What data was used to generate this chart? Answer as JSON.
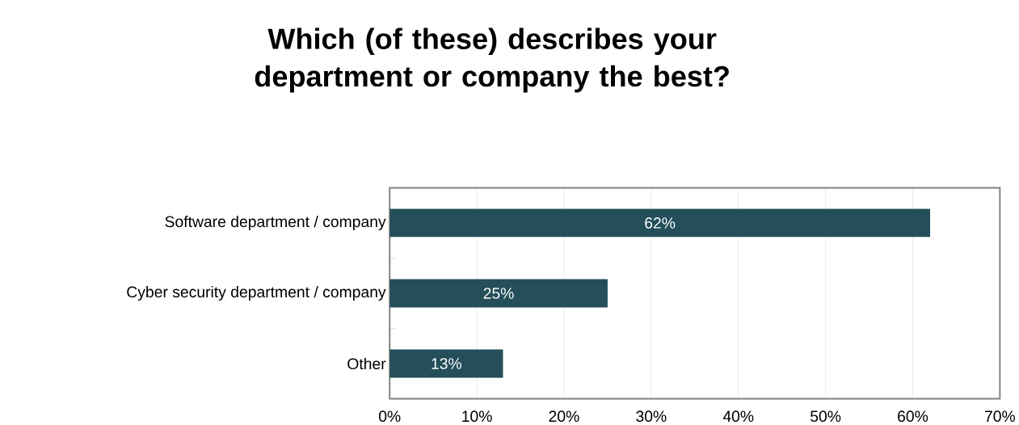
{
  "chart_data": {
    "type": "bar",
    "title": "Which (of these) describes your department or company the best?",
    "categories": [
      "Software department / company",
      "Cyber security department / company",
      "Other"
    ],
    "values": [
      62,
      25,
      13
    ],
    "value_labels": [
      "62%",
      "25%",
      "13%"
    ],
    "orientation": "horizontal",
    "color": "#234e5a",
    "xlim": [
      0,
      70
    ],
    "xticks": [
      {
        "value": 0,
        "label": "0%"
      },
      {
        "value": 10,
        "label": "10%"
      },
      {
        "value": 20,
        "label": "20%"
      },
      {
        "value": 30,
        "label": "30%"
      },
      {
        "value": 40,
        "label": "40%"
      },
      {
        "value": 50,
        "label": "50%"
      },
      {
        "value": 60,
        "label": "60%"
      },
      {
        "value": 70,
        "label": "70%"
      }
    ],
    "grid": "x"
  }
}
